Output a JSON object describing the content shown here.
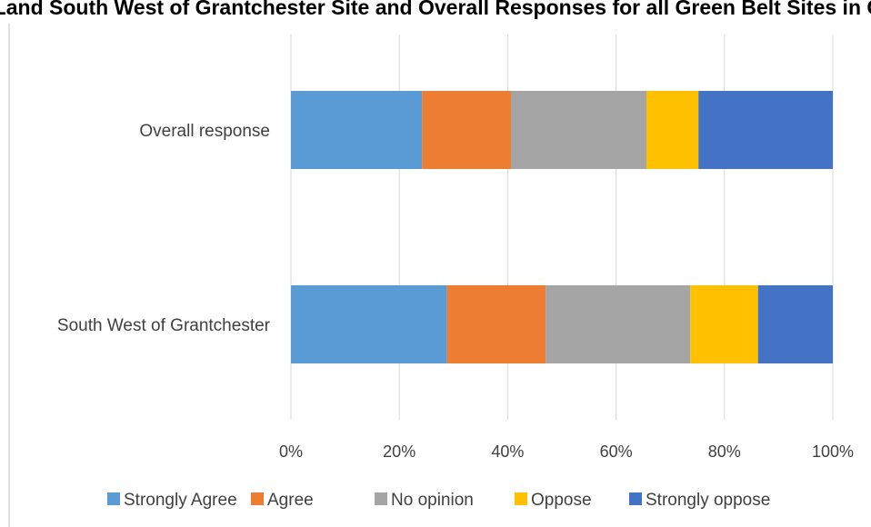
{
  "chart_data": {
    "type": "bar",
    "orientation": "horizontal",
    "stacked": "percent",
    "title": "pport for Land South West of Grantchester Site and Overall Responses for all Green Belt Sites in Cambridge",
    "categories": [
      "Overall response",
      "South West of Grantchester"
    ],
    "series": [
      {
        "name": "Strongly Agree",
        "color": "#5B9BD5",
        "values": [
          24.2,
          28.8
        ]
      },
      {
        "name": "Agree",
        "color": "#ED7D31",
        "values": [
          16.4,
          18.2
        ]
      },
      {
        "name": "No opinion",
        "color": "#A5A5A5",
        "values": [
          25.0,
          26.7
        ]
      },
      {
        "name": "Oppose",
        "color": "#FFC000",
        "values": [
          9.6,
          12.5
        ]
      },
      {
        "name": "Strongly oppose",
        "color": "#4472C4",
        "values": [
          24.8,
          13.8
        ]
      }
    ],
    "xlim": [
      0,
      100
    ],
    "xticks": [
      "0%",
      "20%",
      "40%",
      "60%",
      "80%",
      "100%"
    ],
    "grid": true,
    "legend": "bottom"
  }
}
